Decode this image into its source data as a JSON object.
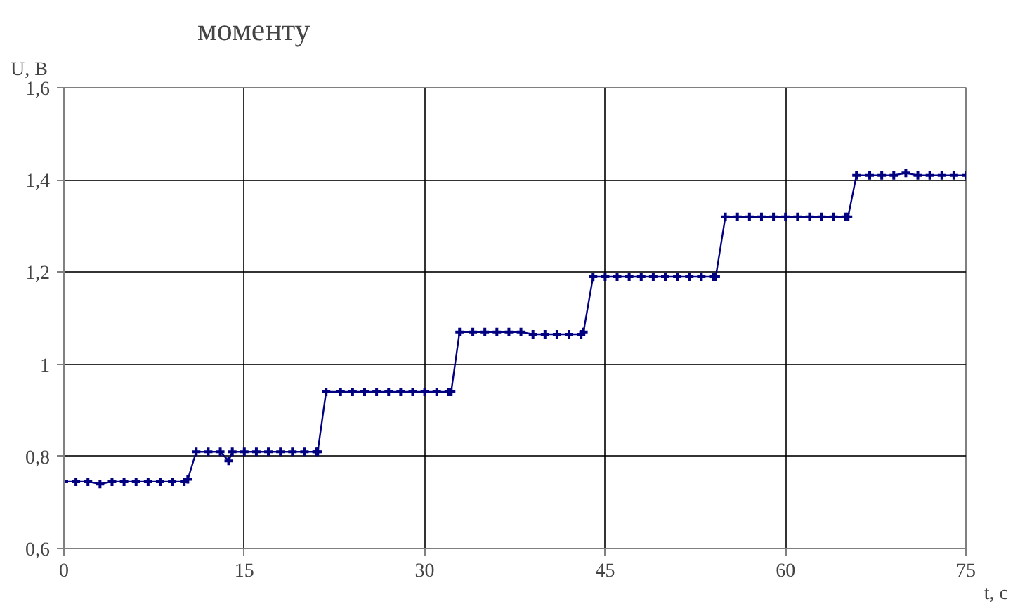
{
  "chart_data": {
    "type": "line",
    "title": "моменту",
    "xlabel": "t, c",
    "ylabel": "U, B",
    "xlim": [
      0,
      75
    ],
    "xticks": [
      0,
      15,
      30,
      45,
      60,
      75
    ],
    "ylim": [
      0.6,
      1.6
    ],
    "yticks": [
      {
        "value": 0.6,
        "label": "0,6"
      },
      {
        "value": 0.8,
        "label": "0,8"
      },
      {
        "value": 1,
        "label": "1"
      },
      {
        "value": 1.2,
        "label": "1,2"
      },
      {
        "value": 1.4,
        "label": "1,4"
      },
      {
        "value": 1.6,
        "label": "1,6"
      }
    ],
    "grid": true,
    "marker": "cross",
    "line_style": "solid",
    "series": [
      {
        "color": "#000080",
        "x": [
          0,
          1,
          2,
          3,
          4,
          5,
          6,
          7,
          8,
          9,
          10,
          10.3,
          11,
          12,
          13,
          13.7,
          14,
          15,
          16,
          17,
          18,
          19,
          20,
          21,
          21.1,
          21.8,
          23,
          24,
          25,
          26,
          27,
          28,
          29,
          30,
          31,
          32,
          32.2,
          32.9,
          34,
          35,
          36,
          37,
          38,
          39,
          40,
          41,
          42,
          43,
          43.2,
          44,
          45,
          46,
          47,
          48,
          49,
          50,
          51,
          52,
          53,
          54,
          54.2,
          55,
          56,
          57,
          58,
          59,
          60,
          61,
          62,
          63,
          64,
          65,
          65.2,
          65.9,
          67,
          68,
          69,
          70,
          71,
          72,
          73,
          74,
          75
        ],
        "values": [
          0.745,
          0.745,
          0.745,
          0.74,
          0.745,
          0.745,
          0.745,
          0.745,
          0.745,
          0.745,
          0.745,
          0.75,
          0.81,
          0.81,
          0.81,
          0.79,
          0.81,
          0.81,
          0.81,
          0.81,
          0.81,
          0.81,
          0.81,
          0.81,
          0.81,
          0.94,
          0.94,
          0.94,
          0.94,
          0.94,
          0.94,
          0.94,
          0.94,
          0.94,
          0.94,
          0.94,
          0.94,
          1.07,
          1.07,
          1.07,
          1.07,
          1.07,
          1.07,
          1.065,
          1.065,
          1.065,
          1.065,
          1.065,
          1.07,
          1.19,
          1.19,
          1.19,
          1.19,
          1.19,
          1.19,
          1.19,
          1.19,
          1.19,
          1.19,
          1.19,
          1.19,
          1.32,
          1.32,
          1.32,
          1.32,
          1.32,
          1.32,
          1.32,
          1.32,
          1.32,
          1.32,
          1.32,
          1.32,
          1.41,
          1.41,
          1.41,
          1.41,
          1.415,
          1.41,
          1.41,
          1.41,
          1.41,
          1.41
        ]
      }
    ]
  }
}
